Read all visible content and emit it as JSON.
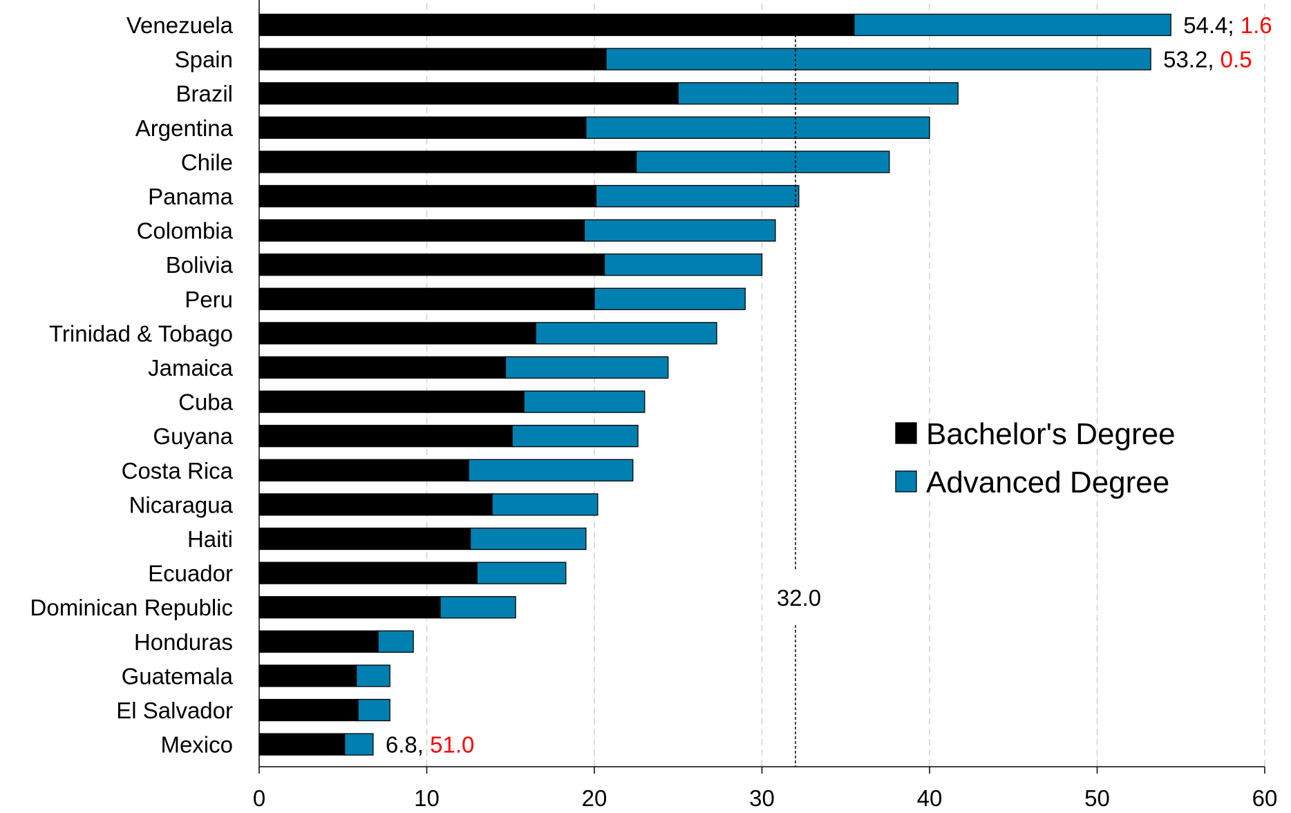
{
  "chart_data": {
    "type": "bar",
    "orientation": "horizontal",
    "stacked": true,
    "categories": [
      "Venezuela",
      "Spain",
      "Brazil",
      "Argentina",
      "Chile",
      "Panama",
      "Colombia",
      "Bolivia",
      "Peru",
      "Trinidad & Tobago",
      "Jamaica",
      "Cuba",
      "Guyana",
      "Costa Rica",
      "Nicaragua",
      "Haiti",
      "Ecuador",
      "Dominican Republic",
      "Honduras",
      "Guatemala",
      "El Salvador",
      "Mexico"
    ],
    "series": [
      {
        "name": "Bachelor's Degree",
        "color": "#000000",
        "values": [
          35.5,
          20.7,
          25.0,
          19.5,
          22.5,
          20.1,
          19.4,
          20.6,
          20.0,
          16.5,
          14.7,
          15.8,
          15.1,
          12.5,
          13.9,
          12.6,
          13.0,
          10.8,
          7.1,
          5.8,
          5.9,
          5.1
        ]
      },
      {
        "name": "Advanced Degree",
        "color": "#0080B0",
        "values": [
          18.9,
          32.5,
          16.7,
          20.5,
          15.1,
          12.1,
          11.4,
          9.4,
          9.0,
          10.8,
          9.7,
          7.2,
          7.5,
          9.8,
          6.3,
          6.9,
          5.3,
          4.5,
          2.1,
          2.0,
          1.9,
          1.7
        ]
      }
    ],
    "xlim": [
      0,
      60
    ],
    "xticks": [
      "0",
      "10",
      "20",
      "30",
      "40",
      "50",
      "60"
    ],
    "grid": "vertical dashed",
    "legend_position": "right",
    "reference_line": {
      "value": 32.0,
      "label": "32.0"
    },
    "annotations": [
      {
        "category": "Venezuela",
        "text": "54.4;",
        "highlight": "1.6"
      },
      {
        "category": "Spain",
        "text": "53.2,",
        "highlight": "0.5"
      },
      {
        "category": "Mexico",
        "text": "6.8,",
        "highlight": "51.0"
      }
    ],
    "highlight_color": "#FF0000",
    "title": "",
    "xlabel": "",
    "ylabel": ""
  }
}
